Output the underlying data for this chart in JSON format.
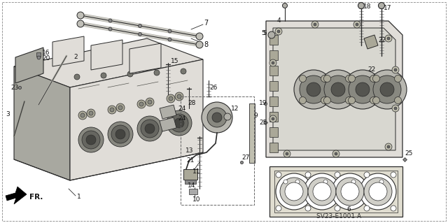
{
  "bg_color": "#f5f5f0",
  "line_color": "#2a2a2a",
  "dashed_color": "#444444",
  "diagram_code": "SV23-E1001 A",
  "fr_label": "FR.",
  "gray_fill": "#c8c8c0",
  "light_gray": "#e0ddd8",
  "mid_gray": "#a8a8a0"
}
